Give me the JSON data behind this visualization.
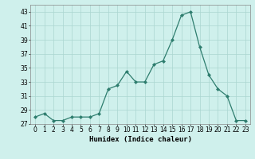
{
  "x_vals": [
    0,
    1,
    2,
    3,
    4,
    5,
    6,
    7,
    8,
    9,
    10,
    11,
    12,
    13,
    14,
    15,
    16,
    17,
    18,
    19,
    20,
    21,
    22,
    23
  ],
  "y_vals": [
    28,
    28.5,
    27.5,
    27.5,
    28,
    28,
    28,
    28.5,
    32,
    32.5,
    34.5,
    33,
    33,
    35.5,
    36,
    39,
    42.5,
    43,
    38,
    34,
    32,
    31,
    27.5,
    27.5
  ],
  "xlabel": "Humidex (Indice chaleur)",
  "ylim": [
    27,
    44
  ],
  "xlim": [
    -0.5,
    23.5
  ],
  "yticks": [
    27,
    29,
    31,
    33,
    35,
    37,
    39,
    41,
    43
  ],
  "xticks": [
    0,
    1,
    2,
    3,
    4,
    5,
    6,
    7,
    8,
    9,
    10,
    11,
    12,
    13,
    14,
    15,
    16,
    17,
    18,
    19,
    20,
    21,
    22,
    23
  ],
  "line_color": "#2e7d6e",
  "bg_color": "#cff0ec",
  "grid_color": "#aad6d0",
  "xlabel_fontsize": 6.5,
  "tick_fontsize": 5.5
}
